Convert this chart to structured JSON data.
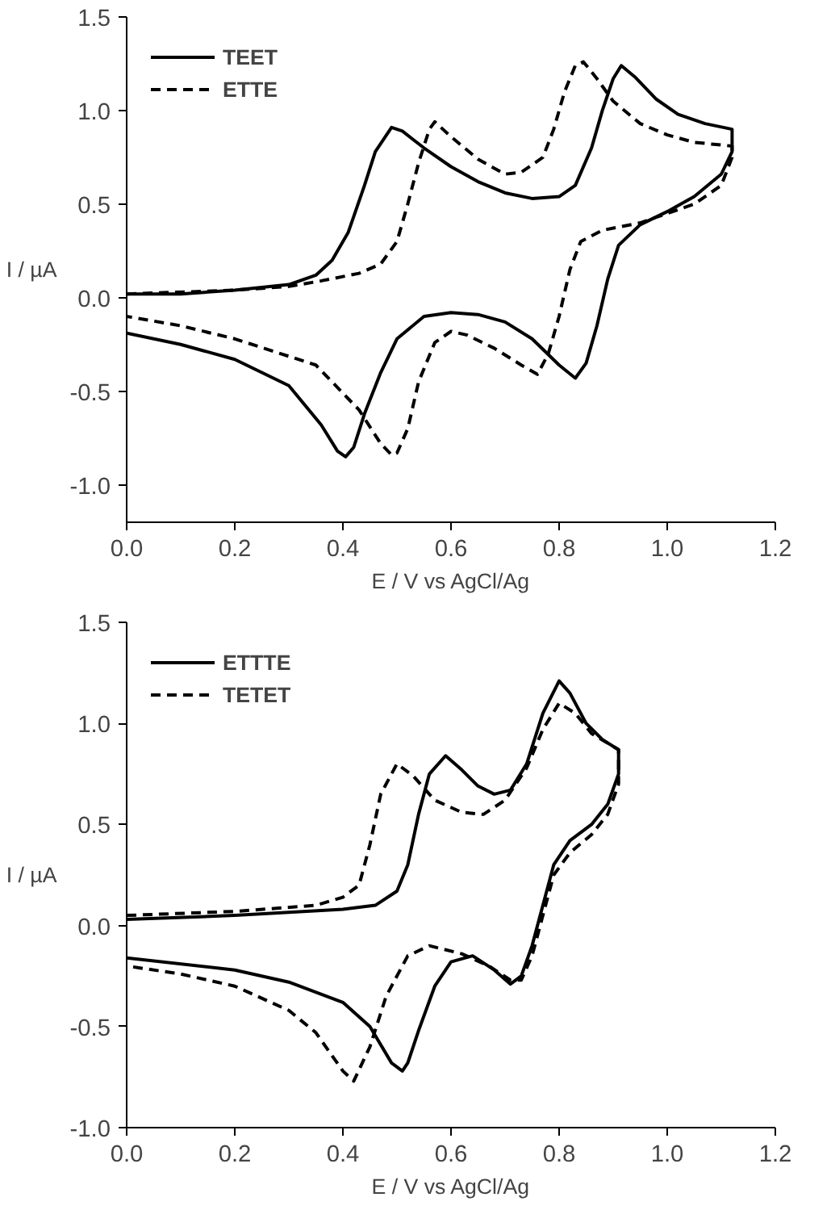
{
  "chart_data": [
    {
      "type": "line",
      "xlabel": "E / V vs AgCl/Ag",
      "ylabel": "I / µA",
      "xlim": [
        0,
        1.2
      ],
      "ylim": [
        -1.2,
        1.5
      ],
      "xticks": [
        {
          "value": 0,
          "label": "0.0"
        },
        {
          "value": 0.2,
          "label": "0.2"
        },
        {
          "value": 0.4,
          "label": "0.4"
        },
        {
          "value": 0.6,
          "label": "0.6"
        },
        {
          "value": 0.8,
          "label": "0.8"
        },
        {
          "value": 1,
          "label": "1.0"
        },
        {
          "value": 1.2,
          "label": "1.2"
        }
      ],
      "yticks": [
        {
          "value": -1,
          "label": "-1.0"
        },
        {
          "value": -0.5,
          "label": "-0.5"
        },
        {
          "value": 0,
          "label": "0.0"
        },
        {
          "value": 0.5,
          "label": "0.5"
        },
        {
          "value": 1,
          "label": "1.0"
        },
        {
          "value": 1.5,
          "label": "1.5"
        }
      ],
      "grid": false,
      "legend": "top left",
      "marker": "none",
      "series": [
        {
          "name": "TEET",
          "color": "#000000",
          "line_style": "solid",
          "x": [
            0,
            0.1,
            0.2,
            0.3,
            0.35,
            0.38,
            0.41,
            0.44,
            0.46,
            0.49,
            0.51,
            0.55,
            0.6,
            0.65,
            0.7,
            0.75,
            0.8,
            0.83,
            0.86,
            0.88,
            0.9,
            0.915,
            0.94,
            0.98,
            1.02,
            1.07,
            1.12,
            1.12,
            1.1,
            1.05,
            1.0,
            0.95,
            0.91,
            0.89,
            0.87,
            0.85,
            0.83,
            0.8,
            0.75,
            0.7,
            0.65,
            0.6,
            0.55,
            0.5,
            0.47,
            0.44,
            0.42,
            0.405,
            0.39,
            0.36,
            0.3,
            0.2,
            0.1,
            0
          ],
          "values": [
            0.02,
            0.02,
            0.04,
            0.07,
            0.12,
            0.2,
            0.35,
            0.6,
            0.78,
            0.91,
            0.89,
            0.8,
            0.7,
            0.62,
            0.56,
            0.53,
            0.54,
            0.6,
            0.8,
            1.0,
            1.17,
            1.24,
            1.18,
            1.06,
            0.98,
            0.93,
            0.9,
            0.78,
            0.66,
            0.54,
            0.46,
            0.39,
            0.28,
            0.1,
            -0.15,
            -0.35,
            -0.43,
            -0.36,
            -0.22,
            -0.13,
            -0.09,
            -0.08,
            -0.1,
            -0.22,
            -0.4,
            -0.62,
            -0.8,
            -0.85,
            -0.82,
            -0.68,
            -0.47,
            -0.33,
            -0.25,
            -0.19
          ]
        },
        {
          "name": "ETTE",
          "color": "#000000",
          "line_style": "dashed",
          "x": [
            0,
            0.2,
            0.3,
            0.36,
            0.43,
            0.47,
            0.5,
            0.52,
            0.54,
            0.56,
            0.57,
            0.6,
            0.65,
            0.7,
            0.73,
            0.77,
            0.79,
            0.81,
            0.83,
            0.845,
            0.87,
            0.9,
            0.95,
            1.0,
            1.05,
            1.12,
            1.12,
            1.1,
            1.05,
            1.0,
            0.95,
            0.88,
            0.84,
            0.82,
            0.8,
            0.78,
            0.76,
            0.73,
            0.68,
            0.63,
            0.6,
            0.57,
            0.54,
            0.52,
            0.5,
            0.49,
            0.47,
            0.43,
            0.35,
            0.2,
            0.1,
            0
          ],
          "values": [
            0.02,
            0.04,
            0.06,
            0.09,
            0.13,
            0.18,
            0.3,
            0.5,
            0.72,
            0.9,
            0.94,
            0.86,
            0.74,
            0.66,
            0.67,
            0.75,
            0.9,
            1.1,
            1.24,
            1.26,
            1.17,
            1.05,
            0.93,
            0.87,
            0.83,
            0.81,
            0.75,
            0.6,
            0.5,
            0.45,
            0.4,
            0.36,
            0.3,
            0.15,
            -0.1,
            -0.3,
            -0.41,
            -0.36,
            -0.27,
            -0.2,
            -0.18,
            -0.24,
            -0.45,
            -0.7,
            -0.83,
            -0.84,
            -0.78,
            -0.6,
            -0.36,
            -0.22,
            -0.15,
            -0.1
          ]
        }
      ]
    },
    {
      "type": "line",
      "xlabel": "E / V vs AgCl/Ag",
      "ylabel": "I / µA",
      "xlim": [
        0,
        1.2
      ],
      "ylim": [
        -1.0,
        1.5
      ],
      "xticks": [
        {
          "value": 0,
          "label": "0.0"
        },
        0.2,
        0.4,
        0.6,
        0.8,
        {
          "value": 1,
          "label": "1.0"
        },
        {
          "value": 1.2,
          "label": "1.2"
        }
      ],
      "yticks": [
        {
          "value": -1,
          "label": "-1.0"
        },
        -0.5,
        {
          "value": 0,
          "label": "0.0"
        },
        0.5,
        {
          "value": 1,
          "label": "1.0"
        },
        1.5
      ],
      "grid": false,
      "legend": "top left",
      "marker": "none",
      "series": [
        {
          "name": "ETTTE",
          "color": "#000000",
          "line_style": "solid",
          "x": [
            0,
            0.2,
            0.4,
            0.46,
            0.5,
            0.52,
            0.54,
            0.56,
            0.59,
            0.62,
            0.65,
            0.68,
            0.71,
            0.74,
            0.77,
            0.8,
            0.82,
            0.85,
            0.88,
            0.91,
            0.91,
            0.89,
            0.86,
            0.82,
            0.79,
            0.77,
            0.75,
            0.73,
            0.71,
            0.68,
            0.64,
            0.6,
            0.57,
            0.54,
            0.52,
            0.51,
            0.49,
            0.45,
            0.4,
            0.3,
            0.2,
            0
          ],
          "values": [
            0.03,
            0.05,
            0.08,
            0.1,
            0.17,
            0.3,
            0.55,
            0.75,
            0.84,
            0.77,
            0.69,
            0.65,
            0.67,
            0.8,
            1.05,
            1.21,
            1.15,
            1.0,
            0.92,
            0.87,
            0.75,
            0.6,
            0.5,
            0.42,
            0.3,
            0.1,
            -0.1,
            -0.25,
            -0.29,
            -0.22,
            -0.15,
            -0.18,
            -0.3,
            -0.52,
            -0.68,
            -0.72,
            -0.68,
            -0.5,
            -0.38,
            -0.28,
            -0.22,
            -0.16
          ]
        },
        {
          "name": "TETET",
          "color": "#000000",
          "line_style": "dashed",
          "x": [
            0,
            0.2,
            0.35,
            0.4,
            0.43,
            0.45,
            0.47,
            0.5,
            0.53,
            0.57,
            0.62,
            0.66,
            0.7,
            0.74,
            0.77,
            0.8,
            0.83,
            0.86,
            0.91,
            0.91,
            0.89,
            0.86,
            0.82,
            0.79,
            0.77,
            0.75,
            0.73,
            0.71,
            0.67,
            0.62,
            0.56,
            0.52,
            0.48,
            0.45,
            0.42,
            0.4,
            0.35,
            0.3,
            0.2,
            0.1,
            0
          ],
          "values": [
            0.05,
            0.07,
            0.1,
            0.14,
            0.2,
            0.4,
            0.65,
            0.8,
            0.74,
            0.62,
            0.56,
            0.55,
            0.62,
            0.78,
            0.97,
            1.1,
            1.05,
            0.95,
            0.87,
            0.7,
            0.55,
            0.45,
            0.36,
            0.25,
            0.05,
            -0.15,
            -0.27,
            -0.27,
            -0.2,
            -0.14,
            -0.1,
            -0.15,
            -0.35,
            -0.6,
            -0.77,
            -0.72,
            -0.53,
            -0.42,
            -0.3,
            -0.24,
            -0.2
          ]
        }
      ]
    }
  ]
}
